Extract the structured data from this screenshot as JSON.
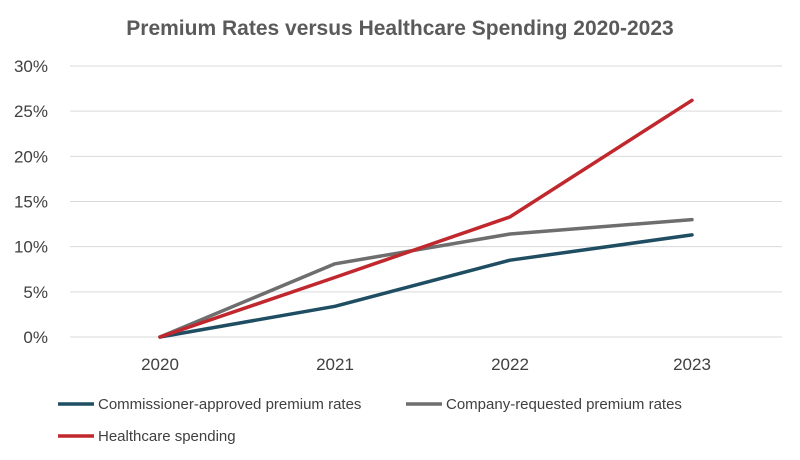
{
  "chart_data": {
    "type": "line",
    "title": "Premium Rates versus Healthcare Spending 2020-2023",
    "xlabel": "",
    "ylabel": "",
    "categories": [
      "2020",
      "2021",
      "2022",
      "2023"
    ],
    "ylim": [
      0,
      30
    ],
    "yticks": [
      0,
      5,
      10,
      15,
      20,
      25,
      30
    ],
    "ytick_labels": [
      "0%",
      "5%",
      "10%",
      "15%",
      "20%",
      "25%",
      "30%"
    ],
    "grid": true,
    "legend_position": "bottom",
    "series": [
      {
        "name": "Commissioner-approved premium rates",
        "color": "#1f4e63",
        "values": [
          0,
          3.4,
          8.5,
          11.3
        ]
      },
      {
        "name": "Company-requested premium rates",
        "color": "#6e6e6e",
        "values": [
          0,
          8.1,
          11.4,
          13.0
        ]
      },
      {
        "name": "Healthcare spending",
        "color": "#c0282d",
        "values": [
          0,
          6.6,
          13.3,
          26.2
        ]
      }
    ]
  }
}
